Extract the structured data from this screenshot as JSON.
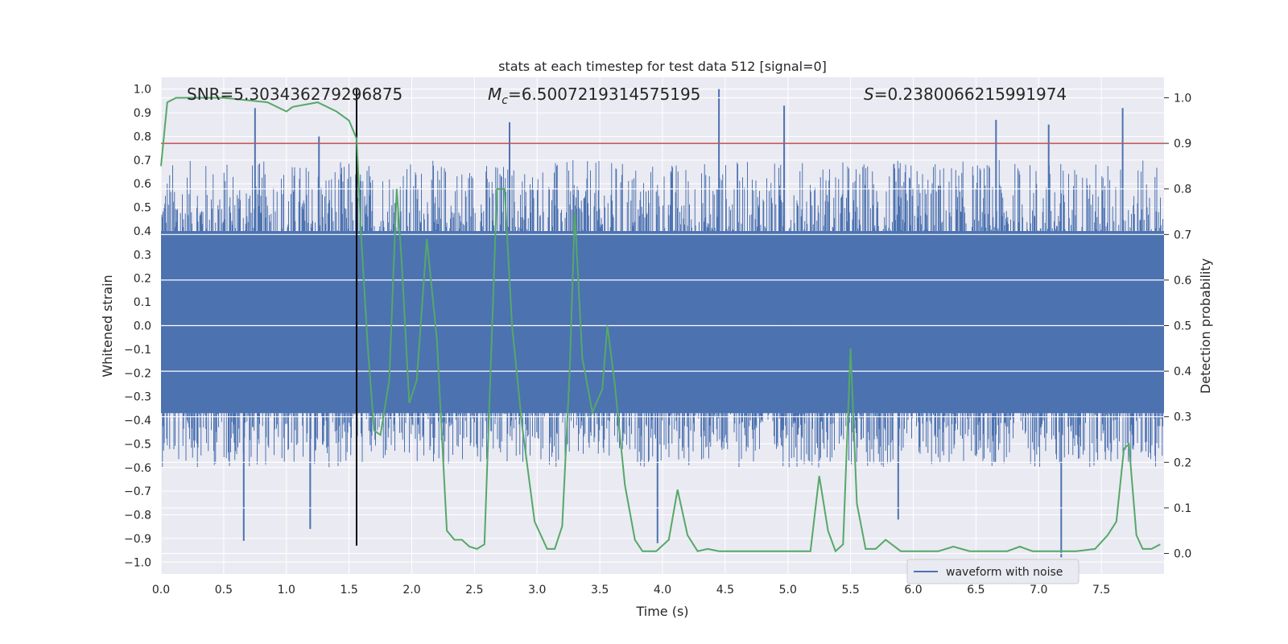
{
  "chart_data": {
    "type": "line",
    "title": "stats at each timestep for test data 512 [signal=0]",
    "xlabel": "Time (s)",
    "ylabel": "Whitened strain",
    "y2label": "Detection probability",
    "xlim": [
      0.0,
      8.0
    ],
    "ylim": [
      -1.05,
      1.05
    ],
    "y2lim": [
      -0.045,
      1.045
    ],
    "xticks": [
      "0.0",
      "0.5",
      "1.0",
      "1.5",
      "2.0",
      "2.5",
      "3.0",
      "3.5",
      "4.0",
      "4.5",
      "5.0",
      "5.5",
      "6.0",
      "6.5",
      "7.0",
      "7.5"
    ],
    "yticks": [
      "1.0",
      "0.9",
      "0.8",
      "0.7",
      "0.6",
      "0.5",
      "0.4",
      "0.3",
      "0.2",
      "0.1",
      "0.0",
      "−0.1",
      "−0.2",
      "−0.3",
      "−0.4",
      "−0.5",
      "−0.6",
      "−0.7",
      "−0.8",
      "−0.9",
      "−1.0"
    ],
    "y2ticks": [
      "1.0",
      "0.9",
      "0.8",
      "0.7",
      "0.6",
      "0.5",
      "0.4",
      "0.3",
      "0.2",
      "0.1",
      "0.0"
    ],
    "grid": true,
    "legend_placement": "lower-right",
    "annotations": {
      "snr": "SNR=5.303436279296875",
      "mc_symbol": "M",
      "mc_sub": "c",
      "mc_value": "=6.5007219314575195",
      "s_symbol": "S",
      "s_value": "=0.2380066215991974"
    },
    "series": [
      {
        "name": "waveform with noise",
        "axis": "left",
        "color": "#4c72b0",
        "kind": "dense noise band",
        "core_band": [
          -0.37,
          0.4
        ],
        "typical_extent": [
          -0.6,
          0.7
        ],
        "peaks": [
          {
            "x": 0.75,
            "y": 0.92
          },
          {
            "x": 1.26,
            "y": 0.8
          },
          {
            "x": 2.78,
            "y": 0.86
          },
          {
            "x": 4.45,
            "y": 1.0
          },
          {
            "x": 4.97,
            "y": 0.93
          },
          {
            "x": 6.66,
            "y": 0.87
          },
          {
            "x": 7.08,
            "y": 0.85
          },
          {
            "x": 7.67,
            "y": 0.92
          },
          {
            "x": 0.66,
            "y": -0.91
          },
          {
            "x": 1.19,
            "y": -0.86
          },
          {
            "x": 3.96,
            "y": -0.92
          },
          {
            "x": 5.88,
            "y": -0.82
          },
          {
            "x": 7.18,
            "y": -0.98
          }
        ]
      },
      {
        "name": "detection probability",
        "axis": "right",
        "color": "#55a868",
        "x": [
          0.0,
          0.05,
          0.12,
          0.2,
          0.5,
          0.85,
          1.0,
          1.05,
          1.25,
          1.4,
          1.5,
          1.56,
          1.6,
          1.65,
          1.7,
          1.75,
          1.82,
          1.88,
          1.92,
          1.98,
          2.04,
          2.12,
          2.2,
          2.28,
          2.34,
          2.4,
          2.46,
          2.52,
          2.58,
          2.68,
          2.74,
          2.8,
          2.88,
          2.98,
          3.08,
          3.14,
          3.2,
          3.26,
          3.3,
          3.36,
          3.44,
          3.52,
          3.56,
          3.62,
          3.7,
          3.78,
          3.84,
          3.95,
          4.05,
          4.12,
          4.2,
          4.28,
          4.36,
          4.45,
          4.6,
          4.78,
          4.95,
          5.1,
          5.18,
          5.25,
          5.32,
          5.38,
          5.44,
          5.5,
          5.55,
          5.62,
          5.7,
          5.78,
          5.9,
          6.05,
          6.2,
          6.32,
          6.45,
          6.6,
          6.75,
          6.85,
          6.95,
          7.05,
          7.15,
          7.3,
          7.45,
          7.55,
          7.62,
          7.68,
          7.72,
          7.78,
          7.83,
          7.9,
          7.97
        ],
        "values": [
          0.85,
          0.99,
          1.0,
          1.0,
          1.0,
          0.99,
          0.97,
          0.98,
          0.99,
          0.97,
          0.95,
          0.91,
          0.68,
          0.45,
          0.27,
          0.26,
          0.38,
          0.8,
          0.64,
          0.33,
          0.38,
          0.69,
          0.47,
          0.05,
          0.03,
          0.03,
          0.015,
          0.01,
          0.02,
          0.8,
          0.8,
          0.5,
          0.28,
          0.07,
          0.01,
          0.01,
          0.06,
          0.4,
          0.75,
          0.43,
          0.31,
          0.36,
          0.5,
          0.37,
          0.15,
          0.03,
          0.005,
          0.005,
          0.03,
          0.14,
          0.04,
          0.005,
          0.01,
          0.005,
          0.005,
          0.005,
          0.005,
          0.005,
          0.005,
          0.17,
          0.05,
          0.005,
          0.02,
          0.45,
          0.11,
          0.01,
          0.01,
          0.03,
          0.005,
          0.005,
          0.005,
          0.015,
          0.005,
          0.005,
          0.005,
          0.015,
          0.005,
          0.005,
          0.005,
          0.005,
          0.01,
          0.04,
          0.07,
          0.23,
          0.24,
          0.04,
          0.01,
          0.01,
          0.02
        ]
      }
    ],
    "threshold_line": {
      "axis": "right",
      "value": 0.9,
      "color": "#c44e52"
    },
    "marker_line": {
      "axis": "left",
      "x": 1.56,
      "y_range": [
        -0.93,
        1.0
      ],
      "color": "#000000"
    }
  }
}
